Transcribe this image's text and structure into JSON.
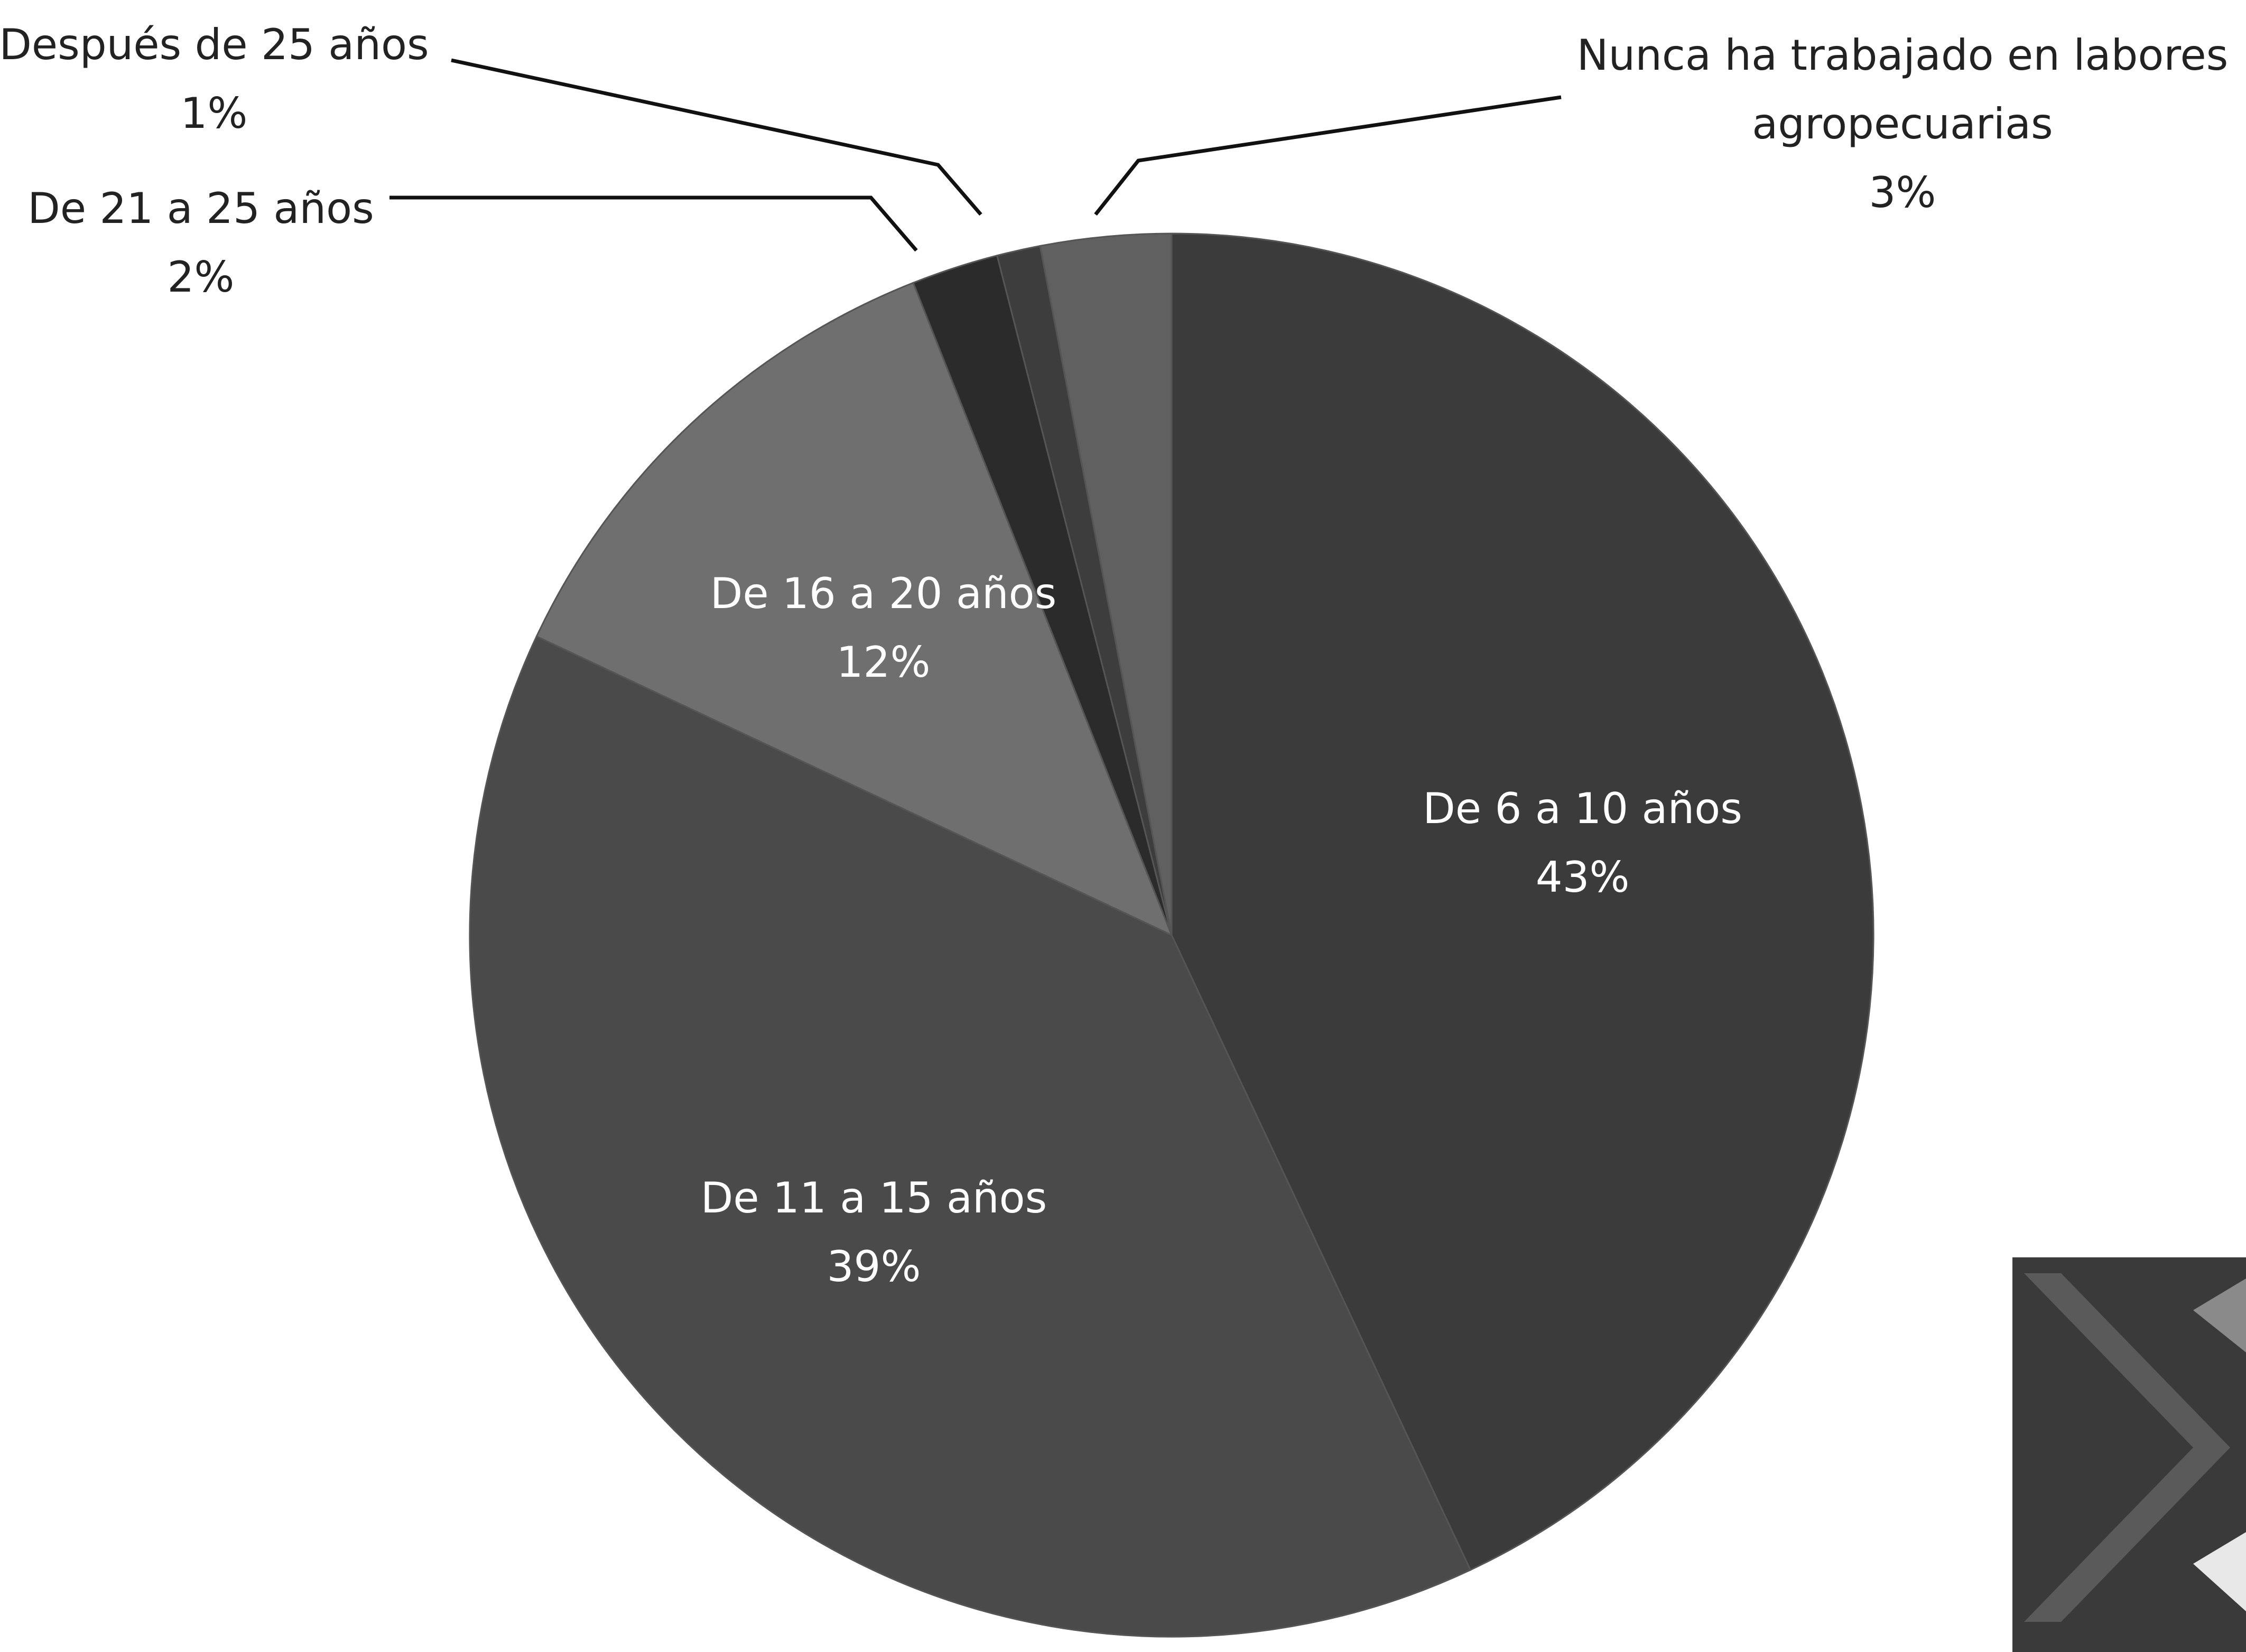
{
  "chart_data": {
    "type": "pie",
    "categories": [
      "De 6 a 10 años",
      "De 11 a 15 años",
      "De 16 a 20 años",
      "De 21 a 25 años",
      "Después de 25 años",
      "Nunca ha trabajado en labores agropecuarias"
    ],
    "values": [
      43,
      39,
      12,
      2,
      1,
      3
    ],
    "value_labels": [
      "43%",
      "39%",
      "12%",
      "2%",
      "1%",
      "3%"
    ],
    "colors": [
      "#3b3b3b",
      "#4a4a4a",
      "#6f6f6f",
      "#2b2b2b",
      "#3d3d3d",
      "#606060"
    ]
  }
}
